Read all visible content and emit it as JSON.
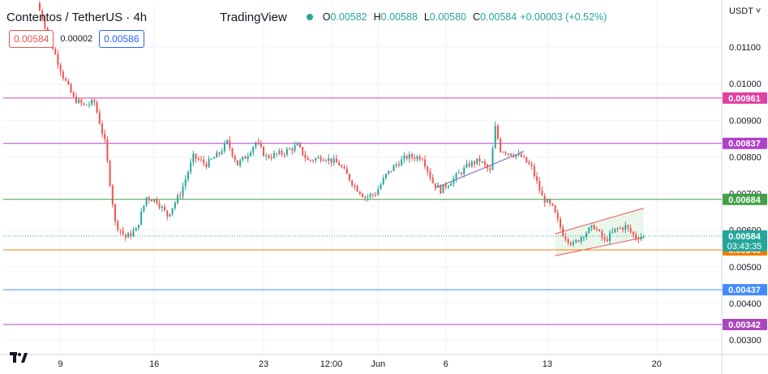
{
  "header": {
    "symbol": "Contentos / TetherUS · 4h",
    "brand": "TradingView",
    "ohlc": {
      "o_label": "O",
      "o": "0.00582",
      "h_label": "H",
      "h": "0.00588",
      "l_label": "L",
      "l": "0.00580",
      "c_label": "C",
      "c": "0.00584",
      "change": "+0.00003 (+0.52%)"
    },
    "status_color": "#26a69a"
  },
  "quotes": {
    "sell": "0.00584",
    "spread": "0.00002",
    "buy": "0.00586"
  },
  "currency_selector": "USDT",
  "colors": {
    "up": "#26a69a",
    "down": "#ef5350",
    "grid": "#f0f3fa",
    "axis_text": "#131722"
  },
  "chart_data": {
    "type": "candlestick",
    "title": "Contentos / TetherUS · 4h",
    "ylim": [
      0.0026,
      0.0122
    ],
    "y_ticks": [
      "0.01100",
      "0.01000",
      "0.00900",
      "0.00800",
      "0.00700",
      "0.00600",
      "0.00500",
      "0.00400",
      "0.00300"
    ],
    "y_tick_values": [
      0.011,
      0.01,
      0.009,
      0.008,
      0.007,
      0.006,
      0.005,
      0.004,
      0.003
    ],
    "x_ticks": [
      "9",
      "16",
      "23",
      "12:00",
      "Jun",
      "6",
      "13",
      "20"
    ],
    "x_tick_index": [
      8,
      44,
      86,
      112,
      130,
      156,
      195,
      237
    ],
    "x_range": [
      -14,
      262
    ],
    "horizontal_levels": [
      {
        "value": 0.00961,
        "label": "0.00961",
        "color": "#e040a0"
      },
      {
        "value": 0.00837,
        "label": "0.00837",
        "color": "#b040c8"
      },
      {
        "value": 0.00684,
        "label": "0.00684",
        "color": "#43a047"
      },
      {
        "value": 0.00546,
        "label": "0.00546",
        "color": "#f57c00"
      },
      {
        "value": 0.00437,
        "label": "0.00437",
        "color": "#448aff"
      },
      {
        "value": 0.00342,
        "label": "0.00342",
        "color": "#ab47bc"
      }
    ],
    "last_price": {
      "value": 0.00584,
      "label": "0.00584",
      "countdown": "03:43:35",
      "color": "#26a69a"
    },
    "trendline": {
      "from": [
        152,
        0.00715
      ],
      "to": [
        186,
        0.00815
      ],
      "color": "#9575cd"
    },
    "channel": {
      "upper": [
        [
          198,
          0.0059
        ],
        [
          232,
          0.0066
        ]
      ],
      "lower": [
        [
          198,
          0.0053
        ],
        [
          232,
          0.0058
        ]
      ],
      "fill": "#e8f5e9",
      "stroke": "#ef5350"
    },
    "anchors": [
      [
        0,
        0.0122
      ],
      [
        6,
        0.011
      ],
      [
        10,
        0.0102
      ],
      [
        14,
        0.0096
      ],
      [
        18,
        0.0094
      ],
      [
        22,
        0.0095
      ],
      [
        26,
        0.0084
      ],
      [
        30,
        0.0062
      ],
      [
        34,
        0.0058
      ],
      [
        38,
        0.006
      ],
      [
        42,
        0.0069
      ],
      [
        46,
        0.0068
      ],
      [
        50,
        0.0064
      ],
      [
        55,
        0.007
      ],
      [
        60,
        0.008
      ],
      [
        65,
        0.0078
      ],
      [
        70,
        0.0081
      ],
      [
        73,
        0.0084
      ],
      [
        77,
        0.0078
      ],
      [
        80,
        0.008
      ],
      [
        84,
        0.0084
      ],
      [
        88,
        0.008
      ],
      [
        94,
        0.0081
      ],
      [
        100,
        0.0083
      ],
      [
        104,
        0.0079
      ],
      [
        110,
        0.008
      ],
      [
        116,
        0.0078
      ],
      [
        122,
        0.0072
      ],
      [
        126,
        0.0069
      ],
      [
        130,
        0.007
      ],
      [
        134,
        0.0075
      ],
      [
        138,
        0.0078
      ],
      [
        142,
        0.008
      ],
      [
        148,
        0.008
      ],
      [
        152,
        0.0073
      ],
      [
        155,
        0.0071
      ],
      [
        160,
        0.0074
      ],
      [
        166,
        0.0078
      ],
      [
        170,
        0.0079
      ],
      [
        174,
        0.0076
      ],
      [
        176,
        0.0088
      ],
      [
        178,
        0.0082
      ],
      [
        182,
        0.0081
      ],
      [
        186,
        0.008
      ],
      [
        190,
        0.0077
      ],
      [
        194,
        0.0069
      ],
      [
        198,
        0.0066
      ],
      [
        202,
        0.0059
      ],
      [
        206,
        0.0056
      ],
      [
        210,
        0.0059
      ],
      [
        214,
        0.0061
      ],
      [
        218,
        0.0057
      ],
      [
        222,
        0.006
      ],
      [
        226,
        0.0061
      ],
      [
        230,
        0.0058
      ],
      [
        232,
        0.00584
      ]
    ],
    "n_candles": 233
  }
}
